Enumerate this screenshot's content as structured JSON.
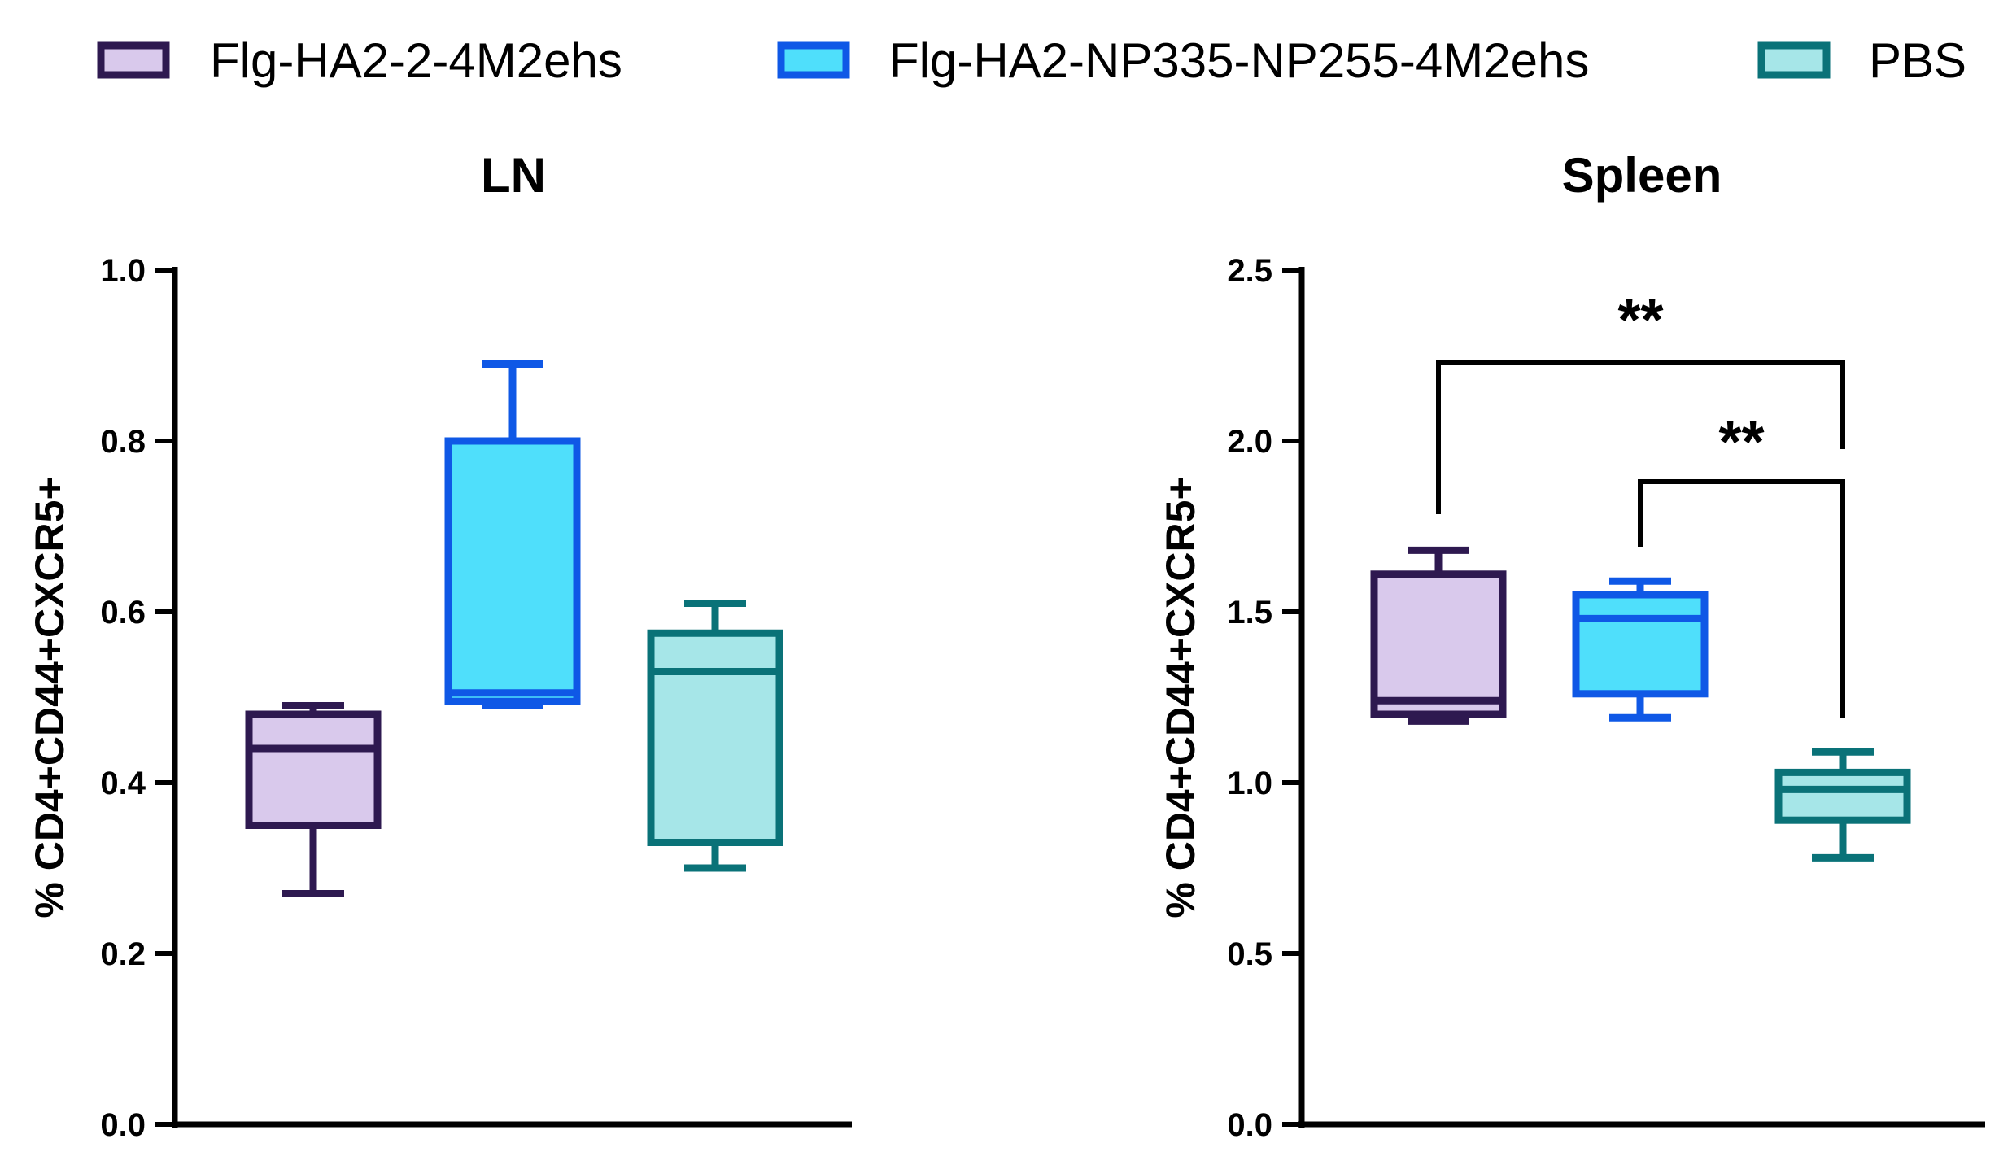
{
  "chart_data": {
    "type": "box",
    "groups": [
      {
        "name": "Flg-HA2-2-4M2ehs",
        "fill": "#d9c9ec",
        "stroke": "#2e1950"
      },
      {
        "name": "Flg-HA2-NP335-NP255-4M2ehs",
        "fill": "#4fdffb",
        "stroke": "#0f58e6"
      },
      {
        "name": "PBS",
        "fill": "#a6e6e8",
        "stroke": "#0a7278"
      }
    ],
    "panels": [
      {
        "title": "LN",
        "ylabel": "% CD4+CD44+CXCR5+",
        "ylim": [
          0,
          1.0
        ],
        "yticks": [
          "0.0",
          "0.2",
          "0.4",
          "0.6",
          "0.8",
          "1.0"
        ],
        "boxes": [
          {
            "group": 0,
            "min": 0.27,
            "q1": 0.35,
            "median": 0.44,
            "q3": 0.48,
            "max": 0.49
          },
          {
            "group": 1,
            "min": 0.49,
            "q1": 0.495,
            "median": 0.505,
            "q3": 0.8,
            "max": 0.89
          },
          {
            "group": 2,
            "min": 0.3,
            "q1": 0.33,
            "median": 0.53,
            "q3": 0.575,
            "max": 0.61
          }
        ],
        "significance": []
      },
      {
        "title": "Spleen",
        "ylabel": "% CD4+CD44+CXCR5+",
        "ylim": [
          0,
          2.5
        ],
        "yticks": [
          "0.0",
          "0.5",
          "1.0",
          "1.5",
          "2.0",
          "2.5"
        ],
        "boxes": [
          {
            "group": 0,
            "min": 1.18,
            "q1": 1.2,
            "median": 1.24,
            "q3": 1.61,
            "max": 1.68
          },
          {
            "group": 1,
            "min": 1.19,
            "q1": 1.26,
            "median": 1.48,
            "q3": 1.55,
            "max": 1.59
          },
          {
            "group": 2,
            "min": 0.78,
            "q1": 0.89,
            "median": 0.98,
            "q3": 1.03,
            "max": 1.09
          }
        ],
        "significance": [
          {
            "from": 0,
            "to": 2,
            "label": "**"
          },
          {
            "from": 1,
            "to": 2,
            "label": "**"
          }
        ]
      }
    ]
  }
}
